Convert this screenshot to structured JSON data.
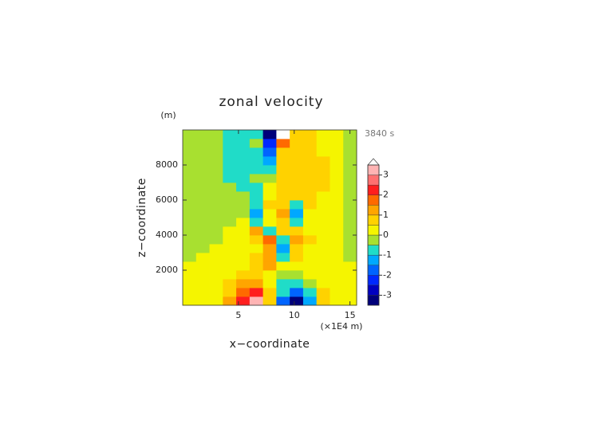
{
  "chart_data": {
    "type": "contour",
    "title": "zonal velocity",
    "x_label": "x−coordinate",
    "y_label": "z−coordinate",
    "x_unit": "(×1E4 m)",
    "y_unit": "(m)",
    "annotation": "3840 s",
    "xlim": [
      0,
      15.6
    ],
    "ylim": [
      0,
      10000
    ],
    "xticks": [
      5,
      10,
      15
    ],
    "yticks": [
      2000,
      4000,
      6000,
      8000
    ],
    "x": [
      0.6,
      1.8,
      3.0,
      4.2,
      5.4,
      6.6,
      7.8,
      9.0,
      10.2,
      11.4,
      12.6,
      13.8,
      15.0
    ],
    "y": [
      250,
      750,
      1250,
      1750,
      2250,
      2750,
      3250,
      3750,
      4250,
      4750,
      5250,
      5750,
      6250,
      6750,
      7250,
      7750,
      8250,
      8750,
      9250,
      9750
    ],
    "z": [
      [
        0.2,
        0.2,
        0.4,
        1.0,
        2.2,
        3.3,
        0.8,
        -2.0,
        -3.3,
        -1.2,
        0.6,
        0.3,
        0.2
      ],
      [
        0.2,
        0.2,
        0.4,
        0.8,
        1.6,
        2.3,
        0.6,
        -1.0,
        -2.0,
        -0.8,
        0.5,
        0.3,
        0.2
      ],
      [
        0.2,
        0.2,
        0.3,
        0.6,
        1.1,
        1.3,
        0.3,
        -0.6,
        -0.9,
        -0.4,
        0.4,
        0.2,
        0.2
      ],
      [
        0.1,
        0.2,
        0.3,
        0.4,
        0.7,
        0.8,
        0.4,
        -0.2,
        -0.3,
        0.2,
        0.3,
        0.2,
        0.1
      ],
      [
        0.1,
        0.2,
        0.2,
        0.3,
        0.4,
        0.6,
        1.2,
        0.2,
        0.4,
        0.3,
        0.2,
        0.1,
        0.1
      ],
      [
        -0.2,
        0.1,
        0.2,
        0.2,
        0.3,
        0.5,
        1.0,
        -0.6,
        0.6,
        0.3,
        0.2,
        0.1,
        -0.2
      ],
      [
        -0.2,
        -0.1,
        0.1,
        0.2,
        0.2,
        0.4,
        1.3,
        -1.2,
        0.5,
        0.4,
        0.2,
        0.1,
        -0.2
      ],
      [
        -0.2,
        -0.2,
        -0.1,
        0.2,
        0.3,
        0.8,
        1.6,
        -0.8,
        1.0,
        0.5,
        0.2,
        0.1,
        -0.1
      ],
      [
        -0.2,
        -0.2,
        -0.2,
        0.1,
        0.3,
        1.2,
        -1.0,
        0.8,
        0.5,
        0.4,
        0.3,
        0.1,
        -0.1
      ],
      [
        -0.2,
        -0.2,
        -0.2,
        -0.1,
        0.2,
        -0.8,
        0.4,
        0.9,
        -0.6,
        0.3,
        0.3,
        0.1,
        -0.2
      ],
      [
        -0.2,
        -0.2,
        -0.2,
        -0.2,
        -0.3,
        -1.4,
        0.3,
        1.2,
        -1.3,
        0.4,
        0.3,
        0.1,
        -0.2
      ],
      [
        -0.2,
        -0.2,
        -0.2,
        -0.3,
        -0.4,
        -1.0,
        0.5,
        0.8,
        -0.7,
        0.6,
        0.4,
        0.2,
        -0.2
      ],
      [
        -0.2,
        -0.2,
        -0.2,
        -0.3,
        -0.5,
        -0.6,
        0.4,
        0.6,
        0.5,
        0.6,
        0.4,
        0.2,
        -0.2
      ],
      [
        -0.2,
        -0.2,
        -0.2,
        -0.4,
        -0.6,
        -0.7,
        0.3,
        0.6,
        0.7,
        0.7,
        0.5,
        0.2,
        -0.2
      ],
      [
        -0.2,
        -0.2,
        -0.3,
        -0.6,
        -0.7,
        -0.5,
        -0.4,
        0.6,
        0.8,
        0.7,
        0.5,
        0.2,
        -0.1
      ],
      [
        -0.2,
        -0.2,
        -0.3,
        -0.6,
        -0.8,
        -0.6,
        -1.0,
        0.5,
        0.8,
        0.7,
        0.5,
        0.2,
        -0.1
      ],
      [
        -0.2,
        -0.2,
        -0.3,
        -0.6,
        -0.8,
        -0.6,
        -1.3,
        0.6,
        0.8,
        0.6,
        0.5,
        0.2,
        -0.2
      ],
      [
        -0.2,
        -0.2,
        -0.3,
        -0.7,
        -0.8,
        -0.6,
        -1.8,
        0.9,
        0.7,
        0.6,
        0.4,
        0.2,
        -0.2
      ],
      [
        -0.2,
        -0.2,
        -0.3,
        -0.7,
        -0.8,
        -0.5,
        -2.5,
        1.5,
        0.7,
        0.6,
        0.4,
        0.2,
        -0.2
      ],
      [
        -0.2,
        -0.2,
        -0.3,
        -0.7,
        -0.8,
        -0.6,
        -3.2,
        3.6,
        0.7,
        0.6,
        0.4,
        0.2,
        -0.2
      ]
    ],
    "levels": [
      -3.5,
      -3,
      -2.5,
      -2,
      -1.5,
      -1,
      -0.5,
      0,
      0.5,
      1,
      1.5,
      2,
      2.5,
      3,
      3.5
    ],
    "colors": [
      "#00007a",
      "#0000c0",
      "#0028ff",
      "#0064ff",
      "#00a8ff",
      "#20dcc8",
      "#a8e030",
      "#f5f500",
      "#ffd200",
      "#ffa500",
      "#ff6a00",
      "#ff1e1e",
      "#ff7070",
      "#ffb4b4"
    ],
    "over_color": "#ffffff",
    "colorbar_ticks": [
      -3,
      -2,
      -1,
      0,
      1,
      2,
      3
    ]
  }
}
